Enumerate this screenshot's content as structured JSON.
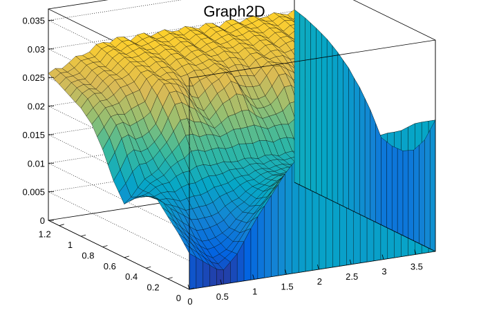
{
  "chart_data": {
    "type": "surface",
    "title": "Graph2D",
    "x_ticks": [
      "0",
      "0.5",
      "1",
      "1.5",
      "2",
      "2.5",
      "3",
      "3.5"
    ],
    "y_ticks": [
      "0",
      "0.2",
      "0.4",
      "0.6",
      "0.8",
      "1",
      "1.2"
    ],
    "z_ticks": [
      "0",
      "0.005",
      "0.01",
      "0.015",
      "0.02",
      "0.025",
      "0.03",
      "0.035"
    ],
    "xlim": [
      0,
      3.8
    ],
    "ylim": [
      0,
      1.3
    ],
    "zlim": [
      0,
      0.037
    ],
    "colormap": [
      "#352a87",
      "#0363e1",
      "#1485d4",
      "#06a7c6",
      "#38b99e",
      "#92bf73",
      "#d9ba56",
      "#fcce2e",
      "#f9fb0e"
    ],
    "grid": true,
    "y_profile": {
      "y": [
        0,
        0.1,
        0.2,
        0.3,
        0.4,
        0.5,
        0.6,
        0.7,
        0.8,
        0.9,
        1.0,
        1.1,
        1.2,
        1.3
      ],
      "values": [
        0.0055,
        0.0045,
        0.0052,
        0.0075,
        0.0108,
        0.0148,
        0.0188,
        0.0222,
        0.0248,
        0.0265,
        0.0275,
        0.0282,
        0.0288,
        0.0292
      ]
    },
    "front_edge": {
      "x": [
        0,
        0.25,
        0.5,
        0.75,
        1.0,
        1.25,
        1.5,
        1.75,
        2.0,
        2.25,
        2.5,
        2.75,
        3.0,
        3.25,
        3.5,
        3.75
      ],
      "values": [
        0.006,
        0.004,
        0.002,
        0.005,
        0.01,
        0.014,
        0.018,
        0.021,
        0.022,
        0.022,
        0.021,
        0.021,
        0.022,
        0.022,
        0.023,
        0.023
      ]
    },
    "left_edge": {
      "y": [
        0,
        0.1,
        0.2,
        0.3,
        0.4,
        0.5,
        0.6,
        0.7,
        0.8,
        0.9,
        1.0,
        1.1,
        1.2,
        1.3
      ],
      "values": [
        0.006,
        0.011,
        0.014,
        0.016,
        0.013,
        0.008,
        0.002,
        0.005,
        0.011,
        0.016,
        0.019,
        0.02,
        0.021,
        0.022
      ]
    }
  }
}
